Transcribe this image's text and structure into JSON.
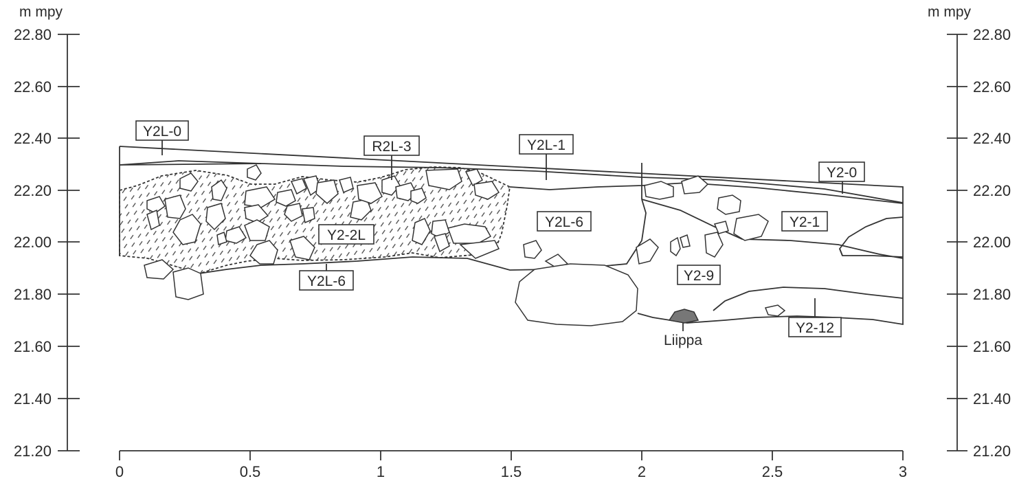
{
  "axes": {
    "unit_left": "m mpy",
    "unit_right": "m mpy",
    "y_ticks": [
      "22.80",
      "22.60",
      "22.40",
      "22.20",
      "22.00",
      "21.80",
      "21.60",
      "21.40",
      "21.20"
    ],
    "x_ticks": [
      "0",
      "0.5",
      "1",
      "1.5",
      "2",
      "2.5",
      "3"
    ]
  },
  "layers": {
    "y2l_0": "Y2L-0",
    "r2l_3": "R2L-3",
    "y2l_1": "Y2L-1",
    "y2_0": "Y2-0",
    "y2l_6_mid": "Y2L-6",
    "y2_1": "Y2-1",
    "y2_2l": "Y2-2L",
    "y2l_6_low": "Y2L-6",
    "y2_9": "Y2-9",
    "y2_12": "Y2-12"
  },
  "find": {
    "label": "Liippa",
    "color": "#777777"
  }
}
